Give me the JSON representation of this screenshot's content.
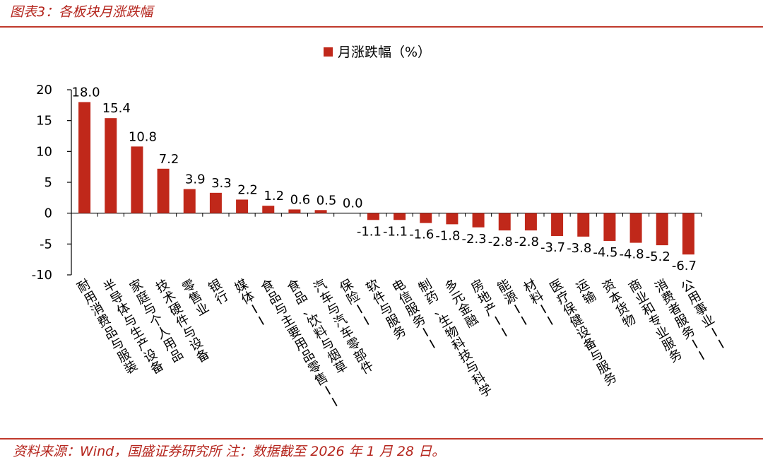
{
  "figure": {
    "title": "图表3：各板块月涨跌幅",
    "source": "资料来源：Wind，国盛证券研究所  注：数据截至 2026 年 1 月 28 日。",
    "accent_color": "#c0392b",
    "bar_color": "#c0281a"
  },
  "chart_data": {
    "type": "bar",
    "title": "",
    "xlabel": "",
    "ylabel": "",
    "ylim": [
      -10,
      20
    ],
    "yticks": [
      -10,
      -5,
      0,
      5,
      10,
      15,
      20
    ],
    "grid": false,
    "legend": {
      "position": "top-center",
      "entries": [
        "月涨跌幅（%）"
      ]
    },
    "categories": [
      "耐用消费品与服装",
      "半导体与生产设备",
      "家庭与个人用品",
      "技术硬件与设备",
      "零售业",
      "银行",
      "媒体II",
      "食品与主要用品零售II",
      "食品、饮料与烟草",
      "汽车与汽车零部件",
      "保险II",
      "软件与服务",
      "电信服务II",
      "制药、生物科技与科学",
      "多元金融",
      "房地产II",
      "能源II",
      "材料II",
      "医疗保健设备与服务",
      "运输",
      "资本货物",
      "商业和专业服务",
      "消费者服务II",
      "公用事业II"
    ],
    "series": [
      {
        "name": "月涨跌幅（%）",
        "values": [
          18.0,
          15.4,
          10.8,
          7.2,
          3.9,
          3.3,
          2.2,
          1.2,
          0.6,
          0.5,
          0.0,
          -1.1,
          -1.1,
          -1.6,
          -1.8,
          -2.3,
          -2.8,
          -2.8,
          -3.7,
          -3.8,
          -4.5,
          -4.8,
          -5.2,
          -6.7
        ],
        "labels": [
          "18.0",
          "15.4",
          "10.8",
          "7.2",
          "3.9",
          "3.3",
          "2.2",
          "1.2",
          "0.6",
          "0.5",
          "0.0",
          "-1.1",
          "-1.1",
          "-1.6",
          "-1.8",
          "-2.3",
          "-2.8",
          "-2.8",
          "-3.7",
          "-3.8",
          "-4.5",
          "-4.8",
          "-5.2",
          "-6.7"
        ]
      }
    ]
  }
}
